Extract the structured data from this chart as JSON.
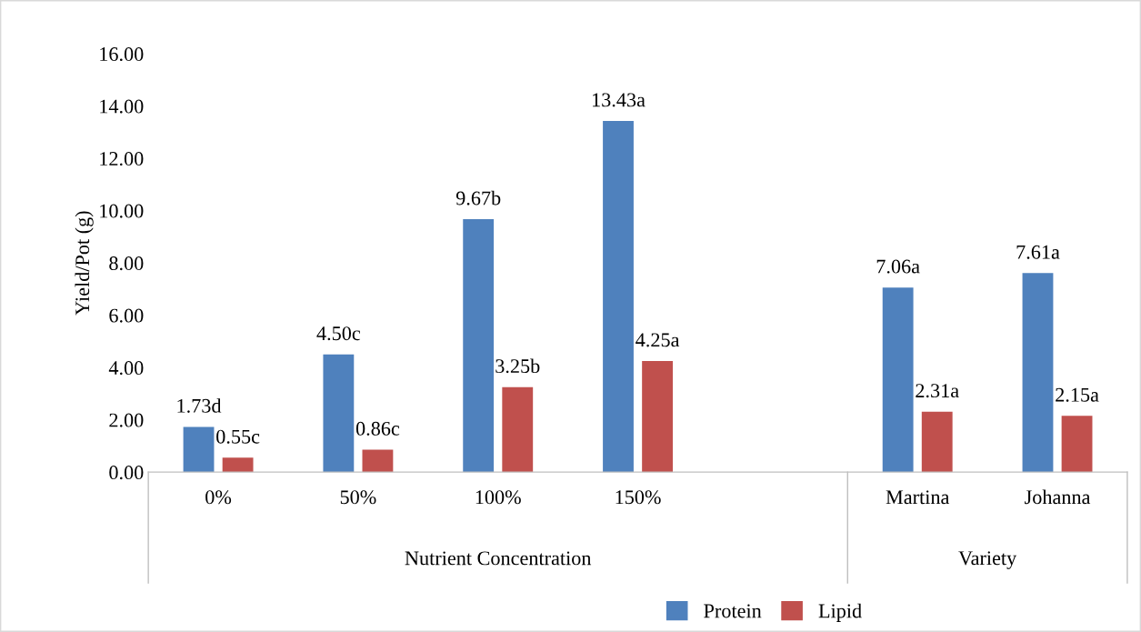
{
  "chart_data": {
    "type": "bar",
    "ylabel": "Yield/Pot (g)",
    "categories": [
      "0%",
      "50%",
      "100%",
      "150%",
      null,
      "Martina",
      "Johanna"
    ],
    "series": [
      {
        "name": "Protein",
        "color": "#4f81bd",
        "values": [
          1.73,
          4.5,
          9.67,
          13.43,
          null,
          7.06,
          7.61
        ],
        "value_labels": [
          "1.73d",
          "4.50c",
          "9.67b",
          "13.43a",
          null,
          "7.06a",
          "7.61a"
        ]
      },
      {
        "name": "Lipid",
        "color": "#c0504d",
        "values": [
          0.55,
          0.86,
          3.25,
          4.25,
          null,
          2.31,
          2.15
        ],
        "value_labels": [
          "0.55c",
          "0.86c",
          "3.25b",
          "4.25a",
          null,
          "2.31a",
          "2.15a"
        ]
      }
    ],
    "ylim": [
      0,
      16
    ],
    "yticks": [
      {
        "value": 0,
        "label": "0.00"
      },
      {
        "value": 2,
        "label": "2.00"
      },
      {
        "value": 4,
        "label": "4.00"
      },
      {
        "value": 6,
        "label": "6.00"
      },
      {
        "value": 8,
        "label": "8.00"
      },
      {
        "value": 10,
        "label": "10.00"
      },
      {
        "value": 12,
        "label": "12.00"
      },
      {
        "value": 14,
        "label": "14.00"
      },
      {
        "value": 16,
        "label": "16.00"
      }
    ],
    "annotations": [
      "Nutrient Concentration",
      "Variety"
    ],
    "grid": false,
    "legend": "bottom"
  }
}
